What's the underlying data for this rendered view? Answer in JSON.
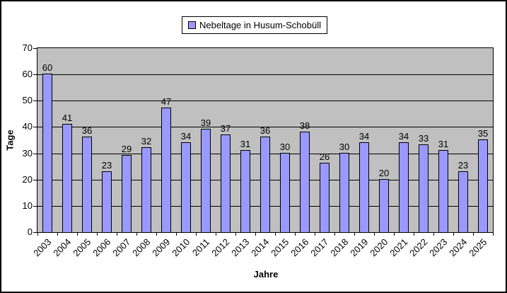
{
  "legend": {
    "label": "Nebeltage in Husum-Schobüll"
  },
  "chart_data": {
    "type": "bar",
    "title": "",
    "series_name": "Nebeltage in Husum-Schobüll",
    "categories": [
      "2003",
      "2004",
      "2005",
      "2006",
      "2007",
      "2008",
      "2009",
      "2010",
      "2011",
      "2012",
      "2013",
      "2014",
      "2015",
      "2016",
      "2017",
      "2018",
      "2019",
      "2020",
      "2021",
      "2022",
      "2023",
      "2024",
      "2025"
    ],
    "values": [
      60,
      41,
      36,
      23,
      29,
      32,
      47,
      34,
      39,
      37,
      31,
      36,
      30,
      38,
      26,
      30,
      34,
      20,
      34,
      33,
      31,
      23,
      35
    ],
    "xlabel": "Jahre",
    "ylabel": "Tage",
    "ylim": [
      0,
      70
    ],
    "yticks": [
      0,
      10,
      20,
      30,
      40,
      50,
      60,
      70
    ],
    "ytick_step": 10,
    "data_labels": true,
    "grid": true,
    "legend_position": "top-center",
    "colors": {
      "bar_fill": "#9999ff",
      "bar_border": "#000000",
      "plot_bg": "#c0c0c0",
      "gridline": "#000000",
      "chart_bg": "#ffffff",
      "chart_border": "#000000"
    }
  }
}
